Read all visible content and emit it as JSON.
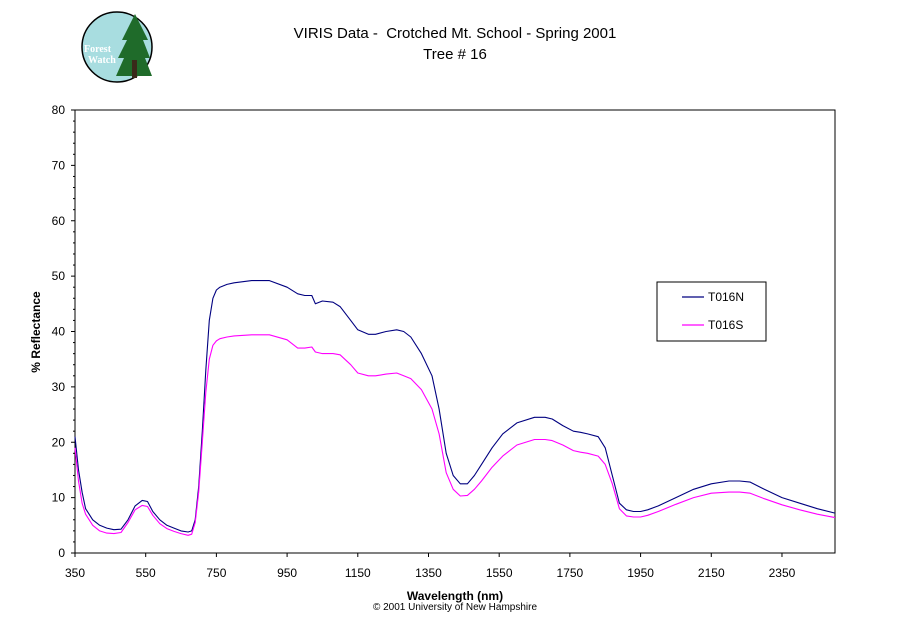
{
  "logo": {
    "line1": "Forest",
    "line2": "Watch"
  },
  "copyright": "© 2001 University of New Hampshire",
  "chart_data": {
    "type": "line",
    "title": "VIRIS Data -  Crotched Mt. School - Spring 2001",
    "subtitle": "Tree # 16",
    "xlabel": "Wavelength (nm)",
    "ylabel": "% Reflectance",
    "xlim": [
      350,
      2500
    ],
    "ylim": [
      0,
      80
    ],
    "xticks": [
      350,
      550,
      750,
      950,
      1150,
      1350,
      1550,
      1750,
      1950,
      2150,
      2350
    ],
    "yticks": [
      0,
      10,
      20,
      30,
      40,
      50,
      60,
      70,
      80
    ],
    "grid": false,
    "legend_position": "right",
    "series": [
      {
        "name": "T016N",
        "color": "#000080",
        "x": [
          350,
          360,
          370,
          380,
          400,
          420,
          440,
          460,
          480,
          500,
          520,
          540,
          555,
          570,
          590,
          610,
          630,
          650,
          670,
          680,
          690,
          700,
          710,
          720,
          730,
          740,
          750,
          760,
          780,
          800,
          850,
          900,
          950,
          980,
          1000,
          1020,
          1030,
          1050,
          1080,
          1100,
          1130,
          1150,
          1180,
          1200,
          1230,
          1260,
          1280,
          1300,
          1330,
          1360,
          1380,
          1400,
          1420,
          1440,
          1460,
          1480,
          1500,
          1530,
          1560,
          1600,
          1650,
          1680,
          1700,
          1730,
          1760,
          1780,
          1800,
          1830,
          1850,
          1870,
          1890,
          1910,
          1930,
          1950,
          1970,
          2000,
          2050,
          2100,
          2150,
          2200,
          2230,
          2260,
          2300,
          2350,
          2400,
          2450,
          2500
        ],
        "y": [
          21,
          15,
          11,
          8,
          6,
          5,
          4.5,
          4.2,
          4.3,
          6,
          8.5,
          9.5,
          9.3,
          7.5,
          6,
          5,
          4.5,
          4,
          3.8,
          4,
          6,
          12,
          22,
          33,
          42,
          46,
          47.5,
          48,
          48.5,
          48.8,
          49.2,
          49.2,
          48,
          46.8,
          46.5,
          46.5,
          45,
          45.5,
          45.3,
          44.5,
          42,
          40.3,
          39.5,
          39.5,
          40,
          40.3,
          40,
          39,
          36,
          32,
          26,
          18,
          14,
          12.5,
          12.5,
          14,
          16,
          19,
          21.5,
          23.5,
          24.5,
          24.5,
          24.2,
          23,
          22,
          21.8,
          21.5,
          21,
          19,
          14,
          9,
          7.8,
          7.5,
          7.5,
          7.8,
          8.5,
          10,
          11.5,
          12.5,
          13,
          13,
          12.8,
          11.5,
          10,
          9,
          8,
          7.2
        ]
      },
      {
        "name": "T016S",
        "color": "#FF00FF",
        "x": [
          350,
          360,
          370,
          380,
          400,
          420,
          440,
          460,
          480,
          500,
          520,
          540,
          555,
          570,
          590,
          610,
          630,
          650,
          670,
          680,
          690,
          700,
          710,
          720,
          730,
          740,
          750,
          760,
          780,
          800,
          850,
          900,
          950,
          980,
          1000,
          1020,
          1030,
          1050,
          1080,
          1100,
          1130,
          1150,
          1180,
          1200,
          1230,
          1260,
          1280,
          1300,
          1330,
          1360,
          1380,
          1400,
          1420,
          1440,
          1460,
          1480,
          1500,
          1530,
          1560,
          1600,
          1650,
          1680,
          1700,
          1730,
          1760,
          1780,
          1800,
          1830,
          1850,
          1870,
          1890,
          1910,
          1930,
          1950,
          1970,
          2000,
          2050,
          2100,
          2150,
          2200,
          2230,
          2260,
          2300,
          2350,
          2400,
          2450,
          2500
        ],
        "y": [
          19,
          13,
          9,
          7,
          5,
          4,
          3.6,
          3.5,
          3.7,
          5.5,
          7.8,
          8.6,
          8.4,
          6.8,
          5.3,
          4.4,
          3.9,
          3.5,
          3.2,
          3.4,
          5.5,
          11,
          20,
          29,
          35,
          37.5,
          38.3,
          38.7,
          39,
          39.2,
          39.4,
          39.4,
          38.5,
          37,
          37,
          37.2,
          36.3,
          36,
          36,
          35.8,
          34,
          32.5,
          32,
          32,
          32.3,
          32.5,
          32,
          31.5,
          29.5,
          26,
          21.5,
          14.5,
          11.5,
          10.3,
          10.4,
          11.5,
          13,
          15.5,
          17.5,
          19.5,
          20.5,
          20.5,
          20.3,
          19.5,
          18.5,
          18.2,
          18,
          17.5,
          16,
          12.5,
          8,
          6.7,
          6.5,
          6.5,
          6.8,
          7.5,
          8.8,
          10,
          10.8,
          11,
          11,
          10.8,
          9.8,
          8.7,
          7.8,
          7,
          6.4
        ]
      }
    ]
  }
}
